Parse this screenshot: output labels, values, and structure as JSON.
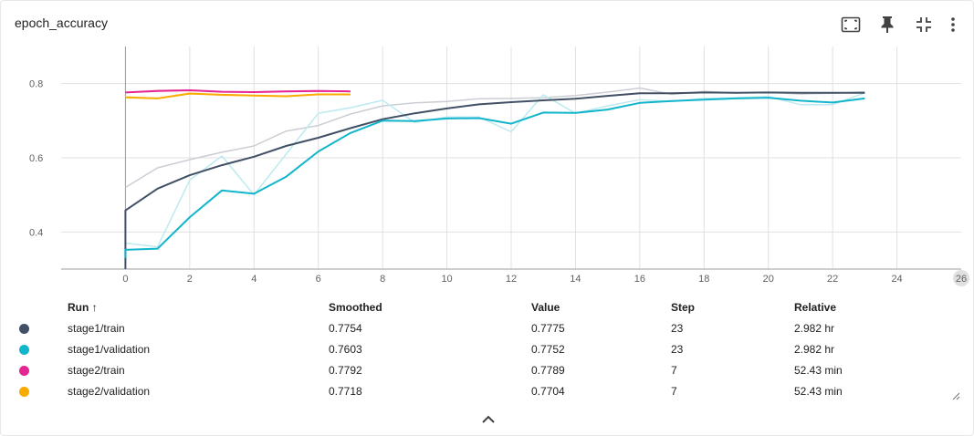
{
  "card": {
    "title": "epoch_accuracy"
  },
  "toolbar": {
    "icons": [
      "fit-to-screen-icon",
      "pin-icon",
      "collapse-icon",
      "more-vert-icon"
    ]
  },
  "chart_data": {
    "type": "line",
    "xlim": [
      -2,
      26
    ],
    "ylim": [
      0.3,
      0.9
    ],
    "xticks": [
      0,
      2,
      4,
      6,
      8,
      10,
      12,
      14,
      16,
      18,
      20,
      22,
      24
    ],
    "last_xtick": "26",
    "yticks": [
      0.4,
      0.6,
      0.8
    ],
    "grid": true,
    "series": [
      {
        "name": "stage1/train",
        "color": "#425066",
        "kind": "raw",
        "x": [
          0,
          1,
          2,
          3,
          4,
          5,
          6,
          7,
          8,
          9,
          10,
          11,
          12,
          13,
          14,
          15,
          16,
          17,
          18,
          19,
          20,
          21,
          22,
          23
        ],
        "y": [
          0.52,
          0.573,
          0.595,
          0.615,
          0.632,
          0.672,
          0.687,
          0.718,
          0.74,
          0.748,
          0.752,
          0.759,
          0.76,
          0.762,
          0.768,
          0.777,
          0.788,
          0.771,
          0.779,
          0.775,
          0.776,
          0.772,
          0.774,
          0.778
        ]
      },
      {
        "name": "stage1/validation",
        "color": "#12b5cb",
        "kind": "raw",
        "x": [
          0,
          1,
          2,
          3,
          4,
          5,
          6,
          7,
          8,
          9,
          10,
          11,
          12,
          13,
          14,
          15,
          16,
          17,
          18,
          19,
          20,
          21,
          22,
          23
        ],
        "y": [
          0.37,
          0.36,
          0.54,
          0.605,
          0.5,
          0.61,
          0.72,
          0.735,
          0.755,
          0.695,
          0.71,
          0.71,
          0.67,
          0.77,
          0.72,
          0.74,
          0.757,
          0.752,
          0.76,
          0.762,
          0.765,
          0.743,
          0.743,
          0.775
        ]
      },
      {
        "name": "stage2/train",
        "color": "#e52592",
        "kind": "raw",
        "x": [
          0,
          1,
          2,
          3,
          4,
          5,
          6,
          7
        ],
        "y": [
          0.776,
          0.782,
          0.783,
          0.778,
          0.777,
          0.78,
          0.781,
          0.779
        ]
      },
      {
        "name": "stage2/validation",
        "color": "#f9ab00",
        "kind": "raw",
        "x": [
          0,
          1,
          2,
          3,
          4,
          5,
          6,
          7
        ],
        "y": [
          0.765,
          0.76,
          0.775,
          0.768,
          0.768,
          0.765,
          0.772,
          0.77
        ]
      },
      {
        "name": "stage1/train",
        "color": "#425066",
        "kind": "smoothed",
        "x": [
          0,
          0,
          1,
          2,
          3,
          4,
          5,
          6,
          7,
          8,
          9,
          10,
          11,
          12,
          13,
          14,
          15,
          16,
          17,
          18,
          19,
          20,
          21,
          22,
          23
        ],
        "y": [
          0.3,
          0.458,
          0.517,
          0.553,
          0.58,
          0.603,
          0.632,
          0.654,
          0.68,
          0.704,
          0.72,
          0.733,
          0.744,
          0.75,
          0.755,
          0.759,
          0.767,
          0.774,
          0.774,
          0.776,
          0.775,
          0.776,
          0.775,
          0.775,
          0.775
        ]
      },
      {
        "name": "stage1/validation",
        "color": "#12b5cb",
        "kind": "smoothed",
        "x": [
          0,
          0,
          1,
          2,
          3,
          4,
          5,
          6,
          7,
          8,
          9,
          10,
          11,
          12,
          13,
          14,
          15,
          16,
          17,
          18,
          19,
          20,
          21,
          22,
          23
        ],
        "y": [
          0.33,
          0.352,
          0.355,
          0.44,
          0.512,
          0.503,
          0.549,
          0.617,
          0.667,
          0.7,
          0.699,
          0.706,
          0.707,
          0.692,
          0.722,
          0.721,
          0.73,
          0.748,
          0.753,
          0.757,
          0.76,
          0.762,
          0.754,
          0.749,
          0.76
        ]
      },
      {
        "name": "stage2/train",
        "color": "#e52592",
        "kind": "smoothed",
        "x": [
          0,
          1,
          2,
          3,
          4,
          5,
          6,
          7
        ],
        "y": [
          0.776,
          0.78,
          0.782,
          0.778,
          0.777,
          0.779,
          0.78,
          0.779
        ]
      },
      {
        "name": "stage2/validation",
        "color": "#f9ab00",
        "kind": "smoothed",
        "x": [
          0,
          1,
          2,
          3,
          4,
          5,
          6,
          7
        ],
        "y": [
          0.763,
          0.76,
          0.773,
          0.77,
          0.768,
          0.766,
          0.771,
          0.771
        ]
      }
    ]
  },
  "table": {
    "headers": {
      "run": "Run ↑",
      "smoothed": "Smoothed",
      "value": "Value",
      "step": "Step",
      "relative": "Relative"
    },
    "rows": [
      {
        "color": "#425066",
        "run": "stage1/train",
        "smoothed": "0.7754",
        "value": "0.7775",
        "step": "23",
        "relative": "2.982 hr"
      },
      {
        "color": "#12b5cb",
        "run": "stage1/validation",
        "smoothed": "0.7603",
        "value": "0.7752",
        "step": "23",
        "relative": "2.982 hr"
      },
      {
        "color": "#e52592",
        "run": "stage2/train",
        "smoothed": "0.7792",
        "value": "0.7789",
        "step": "7",
        "relative": "52.43 min"
      },
      {
        "color": "#f9ab00",
        "run": "stage2/validation",
        "smoothed": "0.7718",
        "value": "0.7704",
        "step": "7",
        "relative": "52.43 min"
      }
    ]
  }
}
